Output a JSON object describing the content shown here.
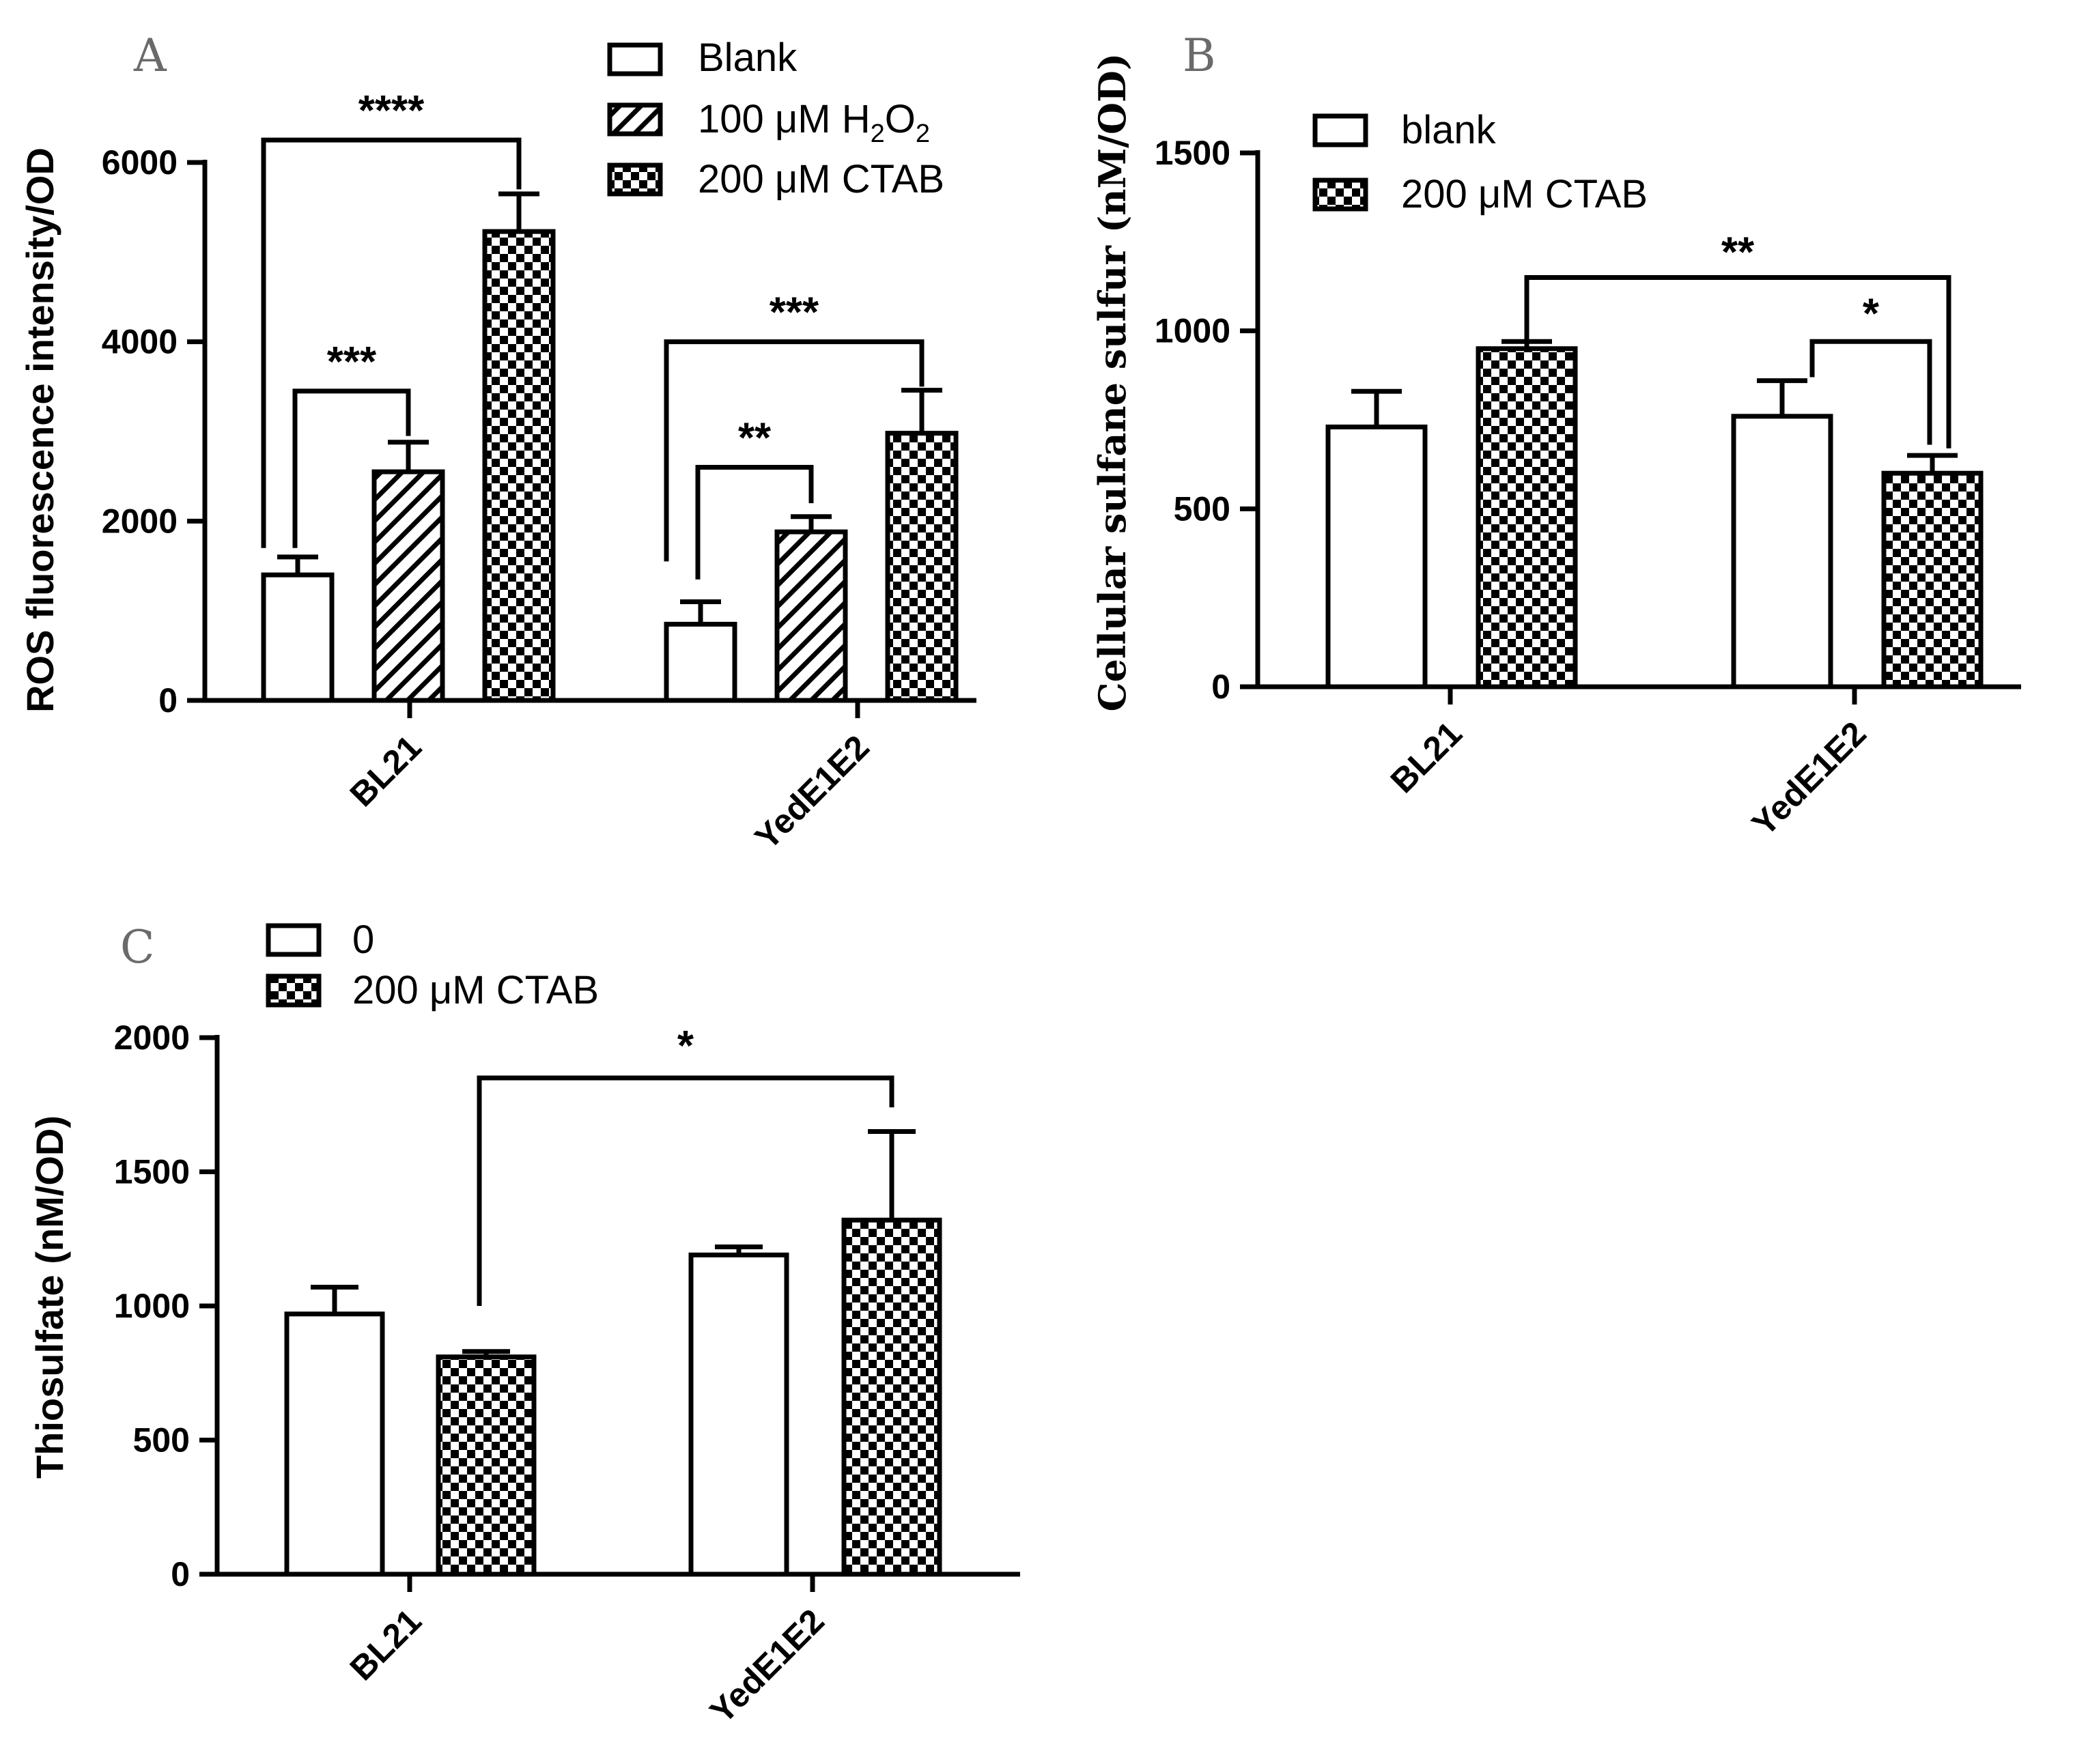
{
  "chart_data": [
    {
      "type": "bar",
      "panel": "A",
      "categories": [
        "BL21",
        "YedE1E2"
      ],
      "series": [
        {
          "name": "Blank",
          "pattern": "blank",
          "values": [
            1400,
            850
          ],
          "errors": [
            200,
            250
          ]
        },
        {
          "name": "100 μM H2O2",
          "pattern": "hatch",
          "values": [
            2550,
            1880
          ],
          "errors": [
            330,
            170
          ]
        },
        {
          "name": "200 μM CTAB",
          "pattern": "checker",
          "values": [
            5230,
            2980
          ],
          "errors": [
            420,
            480
          ]
        }
      ],
      "xlabel": "",
      "ylabel": "ROS fluorescence intensity/OD",
      "ylim": [
        0,
        6000
      ],
      "yticks": [
        "0",
        "2000",
        "4000",
        "6000"
      ],
      "significance": [
        {
          "group": 0,
          "from": 0,
          "to": 2,
          "label": "****",
          "y": 6250
        },
        {
          "group": 0,
          "from": 0,
          "to": 1,
          "label": "***",
          "y": 3450
        },
        {
          "group": 1,
          "from": 0,
          "to": 2,
          "label": "***",
          "y": 4000
        },
        {
          "group": 1,
          "from": 0,
          "to": 1,
          "label": "**",
          "y": 2600
        }
      ],
      "legend_position": "top-right"
    },
    {
      "type": "bar",
      "panel": "B",
      "categories": [
        "BL21",
        "YedE1E2"
      ],
      "series": [
        {
          "name": "blank",
          "pattern": "blank",
          "values": [
            730,
            760
          ],
          "errors": [
            100,
            100
          ]
        },
        {
          "name": "200 μM CTAB",
          "pattern": "checker",
          "values": [
            950,
            600
          ],
          "errors": [
            20,
            50
          ]
        }
      ],
      "xlabel": "",
      "ylabel": "Cellular sulfane sulfur (nM/OD)",
      "ylim": [
        0,
        1500
      ],
      "yticks": [
        "0",
        "500",
        "1000",
        "1500"
      ],
      "significance": [
        {
          "from": [
            0,
            1
          ],
          "to": [
            1,
            1
          ],
          "label": "**",
          "y": 1150
        },
        {
          "from": [
            1,
            0
          ],
          "to": [
            1,
            1
          ],
          "label": "*",
          "y": 970
        }
      ],
      "legend_position": "top-left"
    },
    {
      "type": "bar",
      "panel": "C",
      "categories": [
        "BL21",
        "YedE1E2"
      ],
      "series": [
        {
          "name": "0",
          "pattern": "blank",
          "values": [
            970,
            1190
          ],
          "errors": [
            100,
            30
          ]
        },
        {
          "name": "200 μM CTAB",
          "pattern": "checker",
          "values": [
            810,
            1320
          ],
          "errors": [
            20,
            330
          ]
        }
      ],
      "xlabel": "",
      "ylabel": "Thiosulfate (nM/OD)",
      "ylim": [
        0,
        2000
      ],
      "yticks": [
        "0",
        "500",
        "1000",
        "1500",
        "2000"
      ],
      "significance": [
        {
          "from": [
            0,
            1
          ],
          "to": [
            1,
            1
          ],
          "label": "*",
          "y": 1850
        }
      ],
      "legend_position": "top-left"
    }
  ],
  "panels": {
    "A": {
      "letter": "A",
      "legend": [
        "Blank",
        "100 μM H",
        "2",
        "O",
        "2",
        "200 μM CTAB"
      ]
    },
    "B": {
      "letter": "B",
      "legend": [
        "blank",
        "200 μM CTAB"
      ]
    },
    "C": {
      "letter": "C",
      "legend": [
        "0",
        "200 μM CTAB"
      ]
    }
  },
  "colors": {
    "ink": "#000000",
    "bar_fill": "#ffffff",
    "panel_letter": "#6a6a6a"
  }
}
